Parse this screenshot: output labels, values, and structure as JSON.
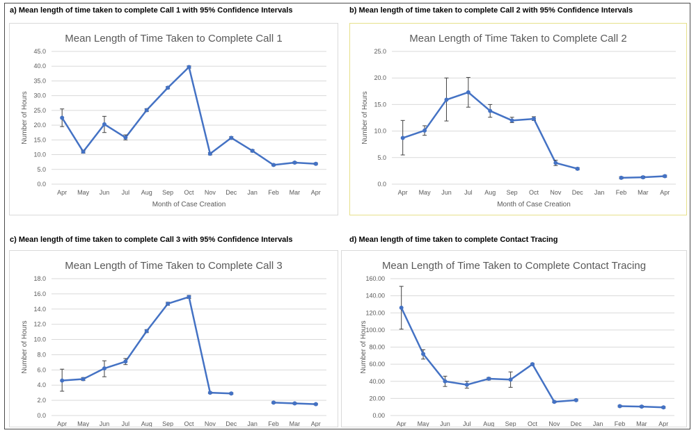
{
  "captions": {
    "a": "a) Mean length of time taken to complete Call 1 with 95% Confidence Intervals",
    "b": "b) Mean length of time taken to complete Call 2 with 95% Confidence Intervals",
    "c": "c) Mean length of time taken to complete Call 3 with 95% Confidence Intervals",
    "d": "d) Mean length of time taken to complete Contact Tracing"
  },
  "colors": {
    "series": "#4472C4",
    "grid": "#d9d9d9",
    "errorbar": "#404040",
    "text": "#595959"
  },
  "chart_data": [
    {
      "type": "line",
      "title": "Mean Length of Time Taken to Complete Call 1",
      "xlabel": "Month of Case Creation",
      "ylabel": "Number of Hours",
      "categories": [
        "Apr",
        "May",
        "Jun",
        "Jul",
        "Aug",
        "Sep",
        "Oct",
        "Nov",
        "Dec",
        "Jan",
        "Feb",
        "Mar",
        "Apr"
      ],
      "values": [
        22.5,
        11.0,
        20.3,
        15.8,
        25.1,
        32.7,
        39.7,
        10.3,
        15.7,
        11.3,
        6.5,
        7.3,
        6.9
      ],
      "ci_low": [
        19.5,
        10.5,
        17.5,
        15.0,
        24.6,
        32.3,
        39.3,
        9.9,
        15.3,
        10.9,
        6.2,
        7.0,
        6.6
      ],
      "ci_high": [
        25.5,
        11.5,
        23.0,
        16.7,
        25.6,
        33.1,
        40.1,
        10.7,
        16.1,
        11.7,
        6.8,
        7.6,
        7.2
      ],
      "ylim": [
        0,
        45
      ],
      "yticks": [
        0,
        5,
        10,
        15,
        20,
        25,
        30,
        35,
        40,
        45
      ],
      "tick_decimals": 1,
      "grid": true,
      "legend": "none"
    },
    {
      "type": "line",
      "title": "Mean Length of Time Taken to Complete Call 2",
      "xlabel": "Month of Case Creation",
      "ylabel": "Number of Hours",
      "categories": [
        "Apr",
        "May",
        "Jun",
        "Jul",
        "Aug",
        "Sep",
        "Oct",
        "Nov",
        "Dec",
        "Jan",
        "Feb",
        "Mar",
        "Apr"
      ],
      "values": [
        8.7,
        10.1,
        15.9,
        17.3,
        13.8,
        12.0,
        12.3,
        4.0,
        2.9,
        null,
        1.2,
        1.3,
        1.5
      ],
      "ci_low": [
        5.5,
        9.2,
        11.9,
        14.5,
        12.6,
        11.6,
        12.0,
        3.5,
        2.7,
        null,
        1.0,
        1.1,
        1.3
      ],
      "ci_high": [
        12.0,
        11.0,
        20.0,
        20.1,
        15.0,
        12.6,
        12.7,
        4.5,
        3.1,
        null,
        1.4,
        1.5,
        1.7
      ],
      "ylim": [
        0,
        25
      ],
      "yticks": [
        0,
        5,
        10,
        15,
        20,
        25
      ],
      "tick_decimals": 1,
      "grid": true,
      "legend": "none"
    },
    {
      "type": "line",
      "title": "Mean Length of Time Taken to Complete Call 3",
      "xlabel": "",
      "ylabel": "Number of Hours",
      "categories": [
        "Apr",
        "May",
        "Jun",
        "Jul",
        "Aug",
        "Sep",
        "Oct",
        "Nov",
        "Dec",
        "Jan",
        "Feb",
        "Mar",
        "Apr"
      ],
      "values": [
        4.6,
        4.8,
        6.2,
        7.1,
        11.1,
        14.7,
        15.6,
        3.0,
        2.9,
        null,
        1.7,
        1.6,
        1.5
      ],
      "ci_low": [
        3.2,
        4.6,
        5.1,
        6.7,
        10.9,
        14.5,
        15.4,
        2.9,
        2.8,
        null,
        1.6,
        1.5,
        1.4
      ],
      "ci_high": [
        6.1,
        5.0,
        7.2,
        7.5,
        11.3,
        14.9,
        15.8,
        3.1,
        3.0,
        null,
        1.8,
        1.7,
        1.6
      ],
      "ylim": [
        0,
        18
      ],
      "yticks": [
        0,
        2,
        4,
        6,
        8,
        10,
        12,
        14,
        16,
        18
      ],
      "tick_decimals": 1,
      "grid": true,
      "legend": "none"
    },
    {
      "type": "line",
      "title": "Mean Length of Time Taken to Complete Contact Tracing",
      "xlabel": "",
      "ylabel": "Number of Hours",
      "categories": [
        "Apr",
        "May",
        "Jun",
        "Jul",
        "Aug",
        "Sep",
        "Oct",
        "Nov",
        "Dec",
        "Jan",
        "Feb",
        "Mar",
        "Apr"
      ],
      "values": [
        126.0,
        72.0,
        40.0,
        36.0,
        43.0,
        42.0,
        60.0,
        16.0,
        18.0,
        null,
        11.0,
        10.5,
        9.5
      ],
      "ci_low": [
        101.0,
        66.0,
        34.0,
        32.0,
        41.5,
        33.0,
        59.0,
        15.0,
        17.0,
        null,
        10.0,
        9.5,
        8.5
      ],
      "ci_high": [
        151.0,
        77.0,
        46.0,
        40.0,
        44.5,
        51.0,
        61.0,
        17.0,
        19.0,
        null,
        12.0,
        11.5,
        10.5
      ],
      "ylim": [
        0,
        160
      ],
      "yticks": [
        0,
        20,
        40,
        60,
        80,
        100,
        120,
        140,
        160
      ],
      "tick_decimals": 2,
      "grid": true,
      "legend": "none"
    }
  ]
}
